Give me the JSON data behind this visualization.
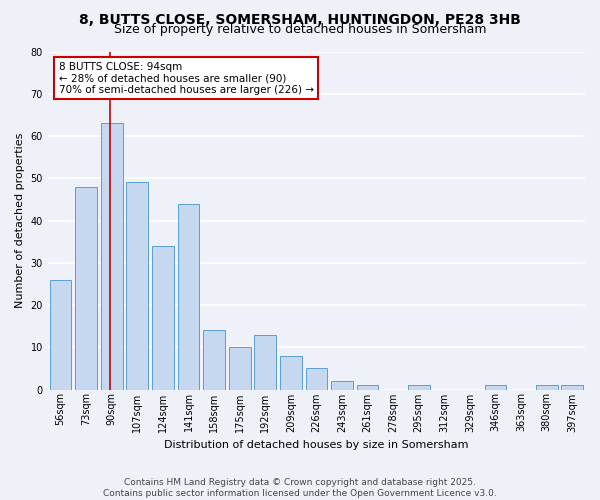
{
  "title": "8, BUTTS CLOSE, SOMERSHAM, HUNTINGDON, PE28 3HB",
  "subtitle": "Size of property relative to detached houses in Somersham",
  "xlabel": "Distribution of detached houses by size in Somersham",
  "ylabel": "Number of detached properties",
  "categories": [
    "56sqm",
    "73sqm",
    "90sqm",
    "107sqm",
    "124sqm",
    "141sqm",
    "158sqm",
    "175sqm",
    "192sqm",
    "209sqm",
    "226sqm",
    "243sqm",
    "261sqm",
    "278sqm",
    "295sqm",
    "312sqm",
    "329sqm",
    "346sqm",
    "363sqm",
    "380sqm",
    "397sqm"
  ],
  "values": [
    26,
    48,
    63,
    49,
    34,
    44,
    14,
    10,
    13,
    8,
    5,
    2,
    1,
    0,
    1,
    0,
    0,
    1,
    0,
    1,
    1
  ],
  "bar_color": "#c5d8f0",
  "bar_edge_color": "#5a9fd4",
  "vline_index": 2,
  "annotation_text": "8 BUTTS CLOSE: 94sqm\n← 28% of detached houses are smaller (90)\n70% of semi-detached houses are larger (226) →",
  "annotation_box_color": "#ffffff",
  "annotation_box_edge_color": "#cc0000",
  "vline_color": "#cc0000",
  "ylim": [
    0,
    80
  ],
  "yticks": [
    0,
    10,
    20,
    30,
    40,
    50,
    60,
    70,
    80
  ],
  "footer_line1": "Contains HM Land Registry data © Crown copyright and database right 2025.",
  "footer_line2": "Contains public sector information licensed under the Open Government Licence v3.0.",
  "background_color": "#eef2f8",
  "grid_color": "#ffffff",
  "title_fontsize": 10,
  "subtitle_fontsize": 9,
  "axis_label_fontsize": 8,
  "tick_fontsize": 7,
  "footer_fontsize": 6.5,
  "annotation_fontsize": 7.5
}
